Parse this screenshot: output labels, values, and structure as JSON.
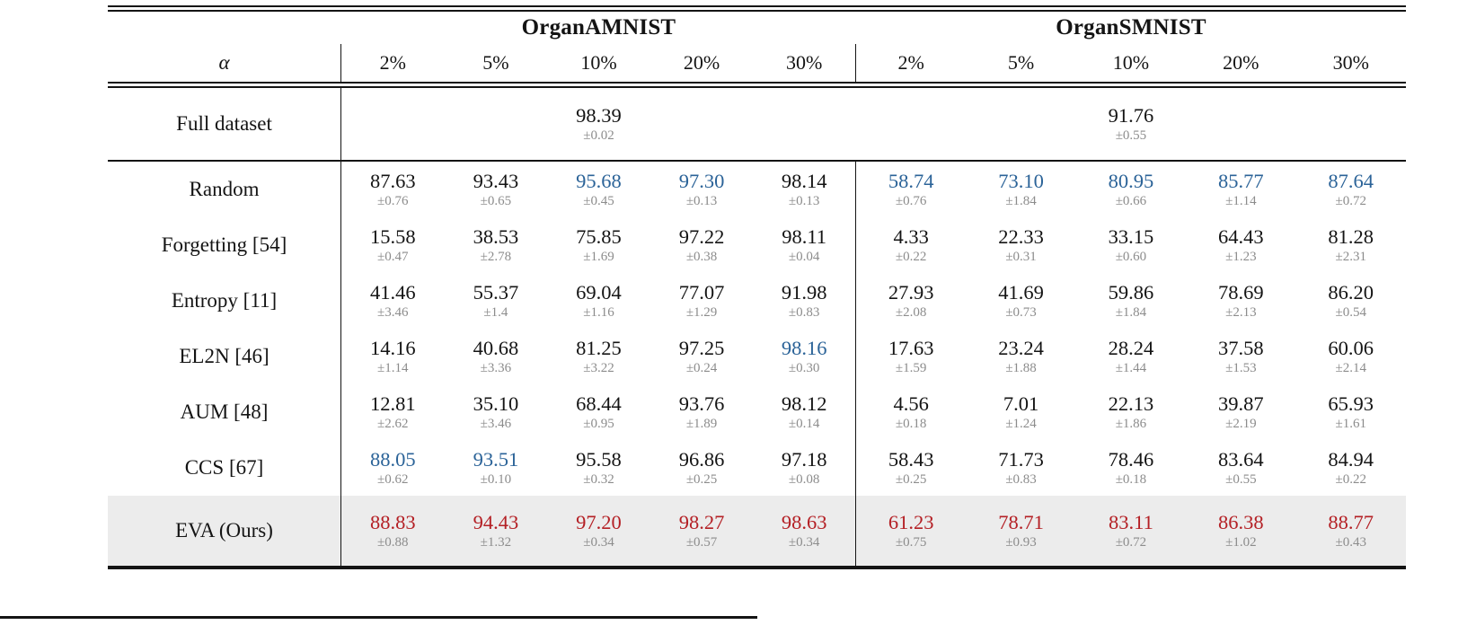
{
  "colors": {
    "highlight_blue": "#2b6398",
    "highlight_red": "#b42025",
    "pm_gray": "#8c8c8c",
    "eva_row_background": "#ececec",
    "rule_black": "#141414"
  },
  "table": {
    "alpha_label": "α",
    "groups": [
      {
        "title": "OrganAMNIST",
        "columns": [
          "2%",
          "5%",
          "10%",
          "20%",
          "30%"
        ]
      },
      {
        "title": "OrganSMNIST",
        "columns": [
          "2%",
          "5%",
          "10%",
          "20%",
          "30%"
        ]
      }
    ],
    "full_dataset": {
      "label": "Full dataset",
      "amnist": {
        "v": "98.39",
        "pm": "±0.02"
      },
      "smnist": {
        "v": "91.76",
        "pm": "±0.55"
      }
    },
    "rows": [
      {
        "label": "Random",
        "cells": [
          {
            "v": "87.63",
            "pm": "±0.76",
            "c": "black"
          },
          {
            "v": "93.43",
            "pm": "±0.65",
            "c": "black"
          },
          {
            "v": "95.68",
            "pm": "±0.45",
            "c": "blue"
          },
          {
            "v": "97.30",
            "pm": "±0.13",
            "c": "blue"
          },
          {
            "v": "98.14",
            "pm": "±0.13",
            "c": "black"
          },
          {
            "v": "58.74",
            "pm": "±0.76",
            "c": "blue"
          },
          {
            "v": "73.10",
            "pm": "±1.84",
            "c": "blue"
          },
          {
            "v": "80.95",
            "pm": "±0.66",
            "c": "blue"
          },
          {
            "v": "85.77",
            "pm": "±1.14",
            "c": "blue"
          },
          {
            "v": "87.64",
            "pm": "±0.72",
            "c": "blue"
          }
        ]
      },
      {
        "label": "Forgetting [54]",
        "cells": [
          {
            "v": "15.58",
            "pm": "±0.47",
            "c": "black"
          },
          {
            "v": "38.53",
            "pm": "±2.78",
            "c": "black"
          },
          {
            "v": "75.85",
            "pm": "±1.69",
            "c": "black"
          },
          {
            "v": "97.22",
            "pm": "±0.38",
            "c": "black"
          },
          {
            "v": "98.11",
            "pm": "±0.04",
            "c": "black"
          },
          {
            "v": "4.33",
            "pm": "±0.22",
            "c": "black"
          },
          {
            "v": "22.33",
            "pm": "±0.31",
            "c": "black"
          },
          {
            "v": "33.15",
            "pm": "±0.60",
            "c": "black"
          },
          {
            "v": "64.43",
            "pm": "±1.23",
            "c": "black"
          },
          {
            "v": "81.28",
            "pm": "±2.31",
            "c": "black"
          }
        ]
      },
      {
        "label": "Entropy [11]",
        "cells": [
          {
            "v": "41.46",
            "pm": "±3.46",
            "c": "black"
          },
          {
            "v": "55.37",
            "pm": "±1.4",
            "c": "black"
          },
          {
            "v": "69.04",
            "pm": "±1.16",
            "c": "black"
          },
          {
            "v": "77.07",
            "pm": "±1.29",
            "c": "black"
          },
          {
            "v": "91.98",
            "pm": "±0.83",
            "c": "black"
          },
          {
            "v": "27.93",
            "pm": "±2.08",
            "c": "black"
          },
          {
            "v": "41.69",
            "pm": "±0.73",
            "c": "black"
          },
          {
            "v": "59.86",
            "pm": "±1.84",
            "c": "black"
          },
          {
            "v": "78.69",
            "pm": "±2.13",
            "c": "black"
          },
          {
            "v": "86.20",
            "pm": "±0.54",
            "c": "black"
          }
        ]
      },
      {
        "label": "EL2N [46]",
        "cells": [
          {
            "v": "14.16",
            "pm": "±1.14",
            "c": "black"
          },
          {
            "v": "40.68",
            "pm": "±3.36",
            "c": "black"
          },
          {
            "v": "81.25",
            "pm": "±3.22",
            "c": "black"
          },
          {
            "v": "97.25",
            "pm": "±0.24",
            "c": "black"
          },
          {
            "v": "98.16",
            "pm": "±0.30",
            "c": "blue"
          },
          {
            "v": "17.63",
            "pm": "±1.59",
            "c": "black"
          },
          {
            "v": "23.24",
            "pm": "±1.88",
            "c": "black"
          },
          {
            "v": "28.24",
            "pm": "±1.44",
            "c": "black"
          },
          {
            "v": "37.58",
            "pm": "±1.53",
            "c": "black"
          },
          {
            "v": "60.06",
            "pm": "±2.14",
            "c": "black"
          }
        ]
      },
      {
        "label": "AUM [48]",
        "cells": [
          {
            "v": "12.81",
            "pm": "±2.62",
            "c": "black"
          },
          {
            "v": "35.10",
            "pm": "±3.46",
            "c": "black"
          },
          {
            "v": "68.44",
            "pm": "±0.95",
            "c": "black"
          },
          {
            "v": "93.76",
            "pm": "±1.89",
            "c": "black"
          },
          {
            "v": "98.12",
            "pm": "±0.14",
            "c": "black"
          },
          {
            "v": "4.56",
            "pm": "±0.18",
            "c": "black"
          },
          {
            "v": "7.01",
            "pm": "±1.24",
            "c": "black"
          },
          {
            "v": "22.13",
            "pm": "±1.86",
            "c": "black"
          },
          {
            "v": "39.87",
            "pm": "±2.19",
            "c": "black"
          },
          {
            "v": "65.93",
            "pm": "±1.61",
            "c": "black"
          }
        ]
      },
      {
        "label": "CCS [67]",
        "cells": [
          {
            "v": "88.05",
            "pm": "±0.62",
            "c": "blue"
          },
          {
            "v": "93.51",
            "pm": "±0.10",
            "c": "blue"
          },
          {
            "v": "95.58",
            "pm": "±0.32",
            "c": "black"
          },
          {
            "v": "96.86",
            "pm": "±0.25",
            "c": "black"
          },
          {
            "v": "97.18",
            "pm": "±0.08",
            "c": "black"
          },
          {
            "v": "58.43",
            "pm": "±0.25",
            "c": "black"
          },
          {
            "v": "71.73",
            "pm": "±0.83",
            "c": "black"
          },
          {
            "v": "78.46",
            "pm": "±0.18",
            "c": "black"
          },
          {
            "v": "83.64",
            "pm": "±0.55",
            "c": "black"
          },
          {
            "v": "84.94",
            "pm": "±0.22",
            "c": "black"
          }
        ]
      },
      {
        "label": "EVA (Ours)",
        "cells": [
          {
            "v": "88.83",
            "pm": "±0.88",
            "c": "red"
          },
          {
            "v": "94.43",
            "pm": "±1.32",
            "c": "red"
          },
          {
            "v": "97.20",
            "pm": "±0.34",
            "c": "red"
          },
          {
            "v": "98.27",
            "pm": "±0.57",
            "c": "red"
          },
          {
            "v": "98.63",
            "pm": "±0.34",
            "c": "red"
          },
          {
            "v": "61.23",
            "pm": "±0.75",
            "c": "red"
          },
          {
            "v": "78.71",
            "pm": "±0.93",
            "c": "red"
          },
          {
            "v": "83.11",
            "pm": "±0.72",
            "c": "red"
          },
          {
            "v": "86.38",
            "pm": "±1.02",
            "c": "red"
          },
          {
            "v": "88.77",
            "pm": "±0.43",
            "c": "red"
          }
        ]
      }
    ]
  }
}
